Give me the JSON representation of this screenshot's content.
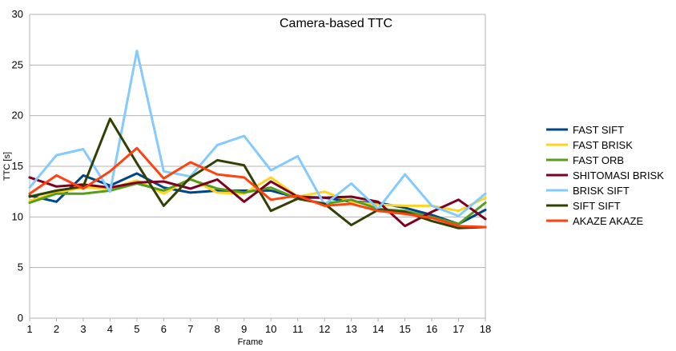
{
  "chart_data": {
    "type": "line",
    "title": "Camera-based TTC",
    "xlabel": "Frame",
    "ylabel": "TTC [s]",
    "x": [
      1,
      2,
      3,
      4,
      5,
      6,
      7,
      8,
      9,
      10,
      11,
      12,
      13,
      14,
      15,
      16,
      17,
      18
    ],
    "ylim": [
      0,
      30
    ],
    "yticks": [
      0,
      5,
      10,
      15,
      20,
      25,
      30
    ],
    "grid": "horizontal",
    "legend_position": "right",
    "series": [
      {
        "name": "FAST SIFT",
        "color": "#004586",
        "values": [
          12.1,
          11.5,
          14.1,
          13.1,
          14.3,
          12.9,
          12.4,
          12.6,
          12.6,
          12.6,
          11.9,
          11.9,
          11.5,
          11.4,
          10.9,
          10.2,
          9.3,
          10.7
        ]
      },
      {
        "name": "FAST BRISK",
        "color": "#FFD320",
        "values": [
          11.6,
          12.4,
          12.9,
          12.8,
          13.6,
          12.3,
          13.8,
          12.4,
          12.3,
          13.9,
          12.0,
          12.5,
          11.5,
          11.2,
          11.1,
          11.1,
          10.6,
          11.9
        ]
      },
      {
        "name": "FAST ORB",
        "color": "#579D1C",
        "values": [
          11.4,
          12.3,
          12.3,
          12.6,
          13.3,
          12.6,
          13.7,
          12.8,
          12.4,
          12.9,
          11.8,
          11.3,
          11.7,
          10.8,
          10.6,
          10.0,
          9.3,
          11.4
        ]
      },
      {
        "name": "SHITOMASI BRISK",
        "color": "#7E0021",
        "values": [
          13.9,
          13.0,
          13.2,
          12.9,
          13.4,
          13.5,
          12.8,
          13.7,
          11.5,
          13.5,
          12.0,
          11.9,
          12.0,
          11.5,
          9.1,
          10.5,
          11.7,
          9.8
        ]
      },
      {
        "name": "BRISK SIFT",
        "color": "#83CAFF",
        "values": [
          12.9,
          16.1,
          16.7,
          12.5,
          26.4,
          14.5,
          14.0,
          17.1,
          18.0,
          14.6,
          16.0,
          11.2,
          13.3,
          10.8,
          14.2,
          11.1,
          10.1,
          12.3
        ]
      },
      {
        "name": "SIFT SIFT",
        "color": "#314004",
        "values": [
          12.0,
          12.6,
          13.0,
          19.7,
          15.3,
          11.1,
          13.9,
          15.6,
          15.1,
          10.6,
          11.8,
          11.3,
          9.2,
          10.7,
          10.5,
          9.6,
          8.9,
          9.0
        ]
      },
      {
        "name": "AKAZE AKAZE",
        "color": "#FF420E",
        "values": [
          12.3,
          14.1,
          12.8,
          14.5,
          16.8,
          13.8,
          15.4,
          14.2,
          13.9,
          11.7,
          12.1,
          11.1,
          11.3,
          10.6,
          10.3,
          9.9,
          9.1,
          9.0
        ]
      }
    ]
  }
}
